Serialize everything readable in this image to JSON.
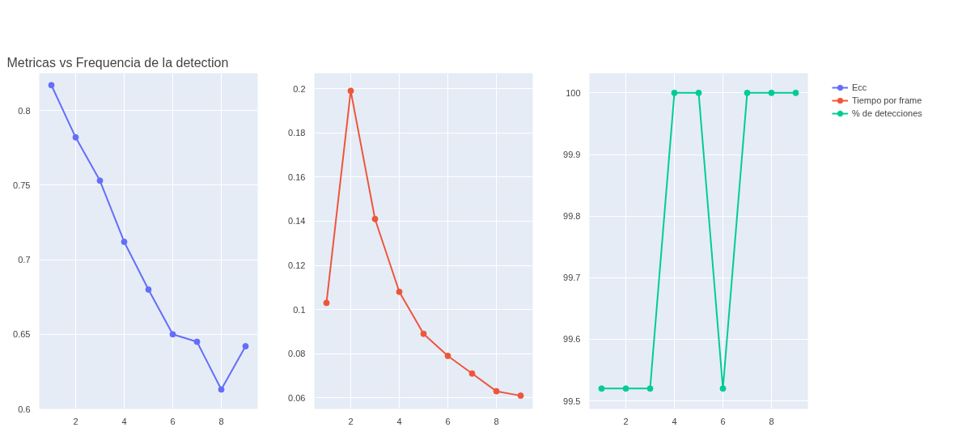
{
  "chart_data": [
    {
      "type": "line",
      "title": "Metricas vs Frequencia de la detection",
      "x": [
        1,
        2,
        3,
        4,
        5,
        6,
        7,
        8,
        9
      ],
      "series": [
        {
          "name": "Ecc",
          "color": "#636efa",
          "values": [
            0.817,
            0.782,
            0.753,
            0.712,
            0.68,
            0.65,
            0.645,
            0.613,
            0.642
          ]
        }
      ],
      "xlim": [
        0.5,
        9.5
      ],
      "xticks": [
        2,
        4,
        6,
        8
      ],
      "ylim": [
        0.6,
        0.825
      ],
      "yticks": [
        0.6,
        0.65,
        0.7,
        0.75,
        0.8
      ],
      "grid": true,
      "marker": "circle",
      "legend": "right"
    },
    {
      "type": "line",
      "x": [
        1,
        2,
        3,
        4,
        5,
        6,
        7,
        8,
        9
      ],
      "series": [
        {
          "name": "Tiempo por frame",
          "color": "#ef553b",
          "values": [
            0.103,
            0.199,
            0.141,
            0.108,
            0.089,
            0.079,
            0.071,
            0.063,
            0.061
          ]
        }
      ],
      "xlim": [
        0.5,
        9.5
      ],
      "xticks": [
        2,
        4,
        6,
        8
      ],
      "ylim": [
        0.055,
        0.207
      ],
      "yticks": [
        0.06,
        0.08,
        0.1,
        0.12,
        0.14,
        0.16,
        0.18,
        0.2
      ],
      "grid": true,
      "marker": "circle",
      "legend": "right"
    },
    {
      "type": "line",
      "x": [
        1,
        2,
        3,
        4,
        5,
        6,
        7,
        8,
        9
      ],
      "series": [
        {
          "name": "% de detecciones",
          "color": "#00cc96",
          "values": [
            99.52,
            99.52,
            99.52,
            100,
            100,
            99.52,
            100,
            100,
            100
          ]
        }
      ],
      "xlim": [
        0.5,
        9.5
      ],
      "xticks": [
        2,
        4,
        6,
        8
      ],
      "ylim": [
        99.487,
        100.032
      ],
      "yticks": [
        99.5,
        99.6,
        99.7,
        99.8,
        99.9,
        100
      ],
      "grid": true,
      "marker": "circle",
      "legend": "right"
    }
  ]
}
